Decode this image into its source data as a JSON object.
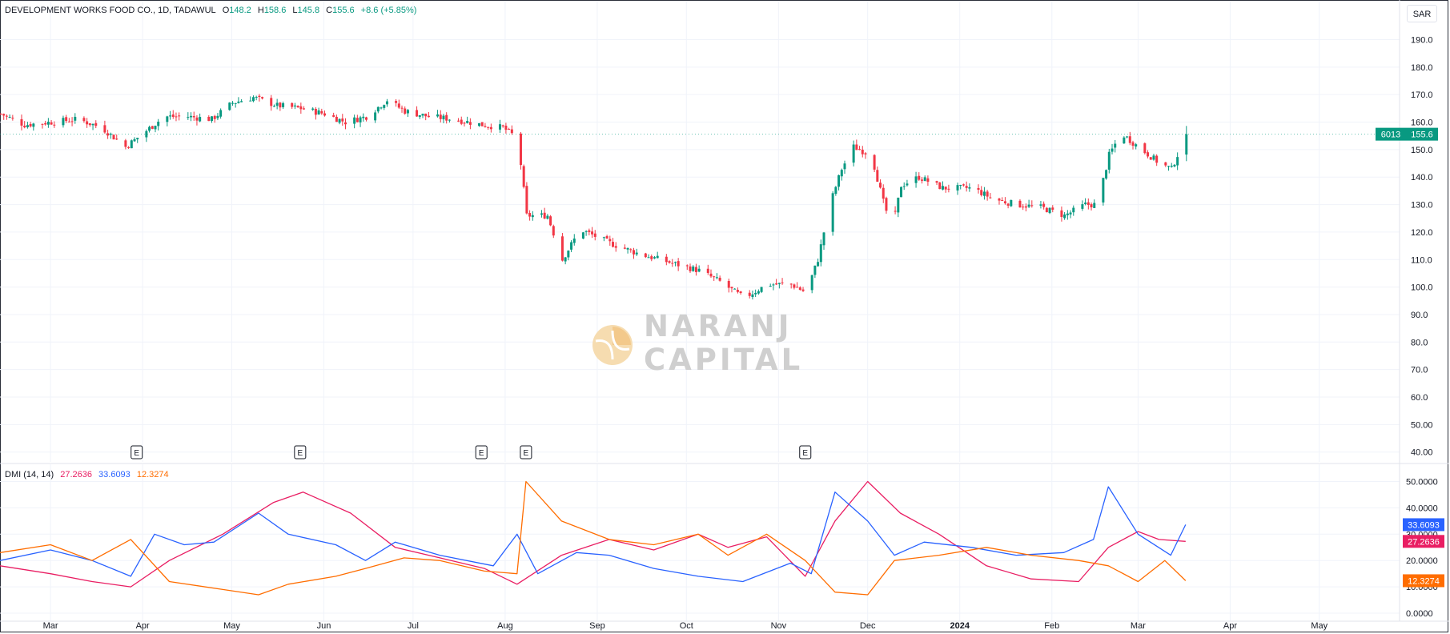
{
  "header": {
    "symbol": "DEVELOPMENT WORKS FOOD CO., 1D, TADAWUL",
    "o_label": "O",
    "o_value": "148.2",
    "h_label": "H",
    "h_value": "158.6",
    "l_label": "L",
    "l_value": "145.8",
    "c_label": "C",
    "c_value": "155.6",
    "change": "+8.6 (+5.85%)"
  },
  "currency_button": "SAR",
  "price_tag": {
    "countdown": "6013",
    "last": "155.6"
  },
  "watermark": {
    "line1": "NARANJ",
    "line2": "CAPITAL"
  },
  "indicator_legend": {
    "name": "DMI (14, 14)",
    "adx": "27.2636",
    "plus_di": "33.6093",
    "minus_di": "12.3274"
  },
  "colors": {
    "up": "#089981",
    "down": "#f23645",
    "adx": "#e91e63",
    "plus_di": "#2962ff",
    "minus_di": "#ff6d00",
    "grid": "#f0f3fa",
    "axis_text": "#131722"
  },
  "earnings_marker": "E",
  "chart_data": [
    {
      "type": "candlestick",
      "title": "DEVELOPMENT WORKS FOOD CO., 1D, TADAWUL",
      "ylim": [
        37,
        198
      ],
      "y_ticks": [
        "190.0",
        "180.0",
        "170.0",
        "160.0",
        "150.0",
        "140.0",
        "130.0",
        "120.0",
        "110.0",
        "100.0",
        "90.0",
        "80.0",
        "70.0",
        "60.0",
        "50.00",
        "40.00"
      ],
      "x_ticks": [
        "Mar",
        "Apr",
        "May",
        "Jun",
        "Jul",
        "Aug",
        "Sep",
        "Oct",
        "Nov",
        "Dec",
        "2024",
        "Feb",
        "Mar",
        "Apr",
        "May"
      ],
      "x_tick_dates": [
        "2023-03-01",
        "2023-04-01",
        "2023-05-01",
        "2023-06-01",
        "2023-07-01",
        "2023-08-01",
        "2023-09-01",
        "2023-10-01",
        "2023-11-01",
        "2023-12-01",
        "2024-01-01",
        "2024-02-01",
        "2024-03-01",
        "2024-04-01",
        "2024-05-01"
      ],
      "earnings_dates": [
        "2023-03-30",
        "2023-05-24",
        "2023-07-24",
        "2023-08-08",
        "2023-11-10"
      ],
      "close_path": [
        [
          "2023-02-12",
          163
        ],
        [
          "2023-02-20",
          159
        ],
        [
          "2023-03-01",
          160
        ],
        [
          "2023-03-10",
          161
        ],
        [
          "2023-03-18",
          158
        ],
        [
          "2023-03-26",
          151
        ],
        [
          "2023-04-01",
          156
        ],
        [
          "2023-04-08",
          162
        ],
        [
          "2023-04-16",
          162
        ],
        [
          "2023-04-24",
          161
        ],
        [
          "2023-05-01",
          167
        ],
        [
          "2023-05-08",
          169
        ],
        [
          "2023-05-16",
          166
        ],
        [
          "2023-05-24",
          165
        ],
        [
          "2023-06-01",
          163
        ],
        [
          "2023-06-08",
          160
        ],
        [
          "2023-06-15",
          162
        ],
        [
          "2023-06-22",
          168
        ],
        [
          "2023-06-28",
          164
        ],
        [
          "2023-07-06",
          162
        ],
        [
          "2023-07-15",
          161
        ],
        [
          "2023-07-24",
          159
        ],
        [
          "2023-07-31",
          158
        ],
        [
          "2023-08-05",
          154
        ],
        [
          "2023-08-08",
          126
        ],
        [
          "2023-08-15",
          126
        ],
        [
          "2023-08-20",
          110
        ],
        [
          "2023-08-26",
          121
        ],
        [
          "2023-09-05",
          116
        ],
        [
          "2023-09-15",
          112
        ],
        [
          "2023-09-25",
          109
        ],
        [
          "2023-10-05",
          106
        ],
        [
          "2023-10-12",
          102
        ],
        [
          "2023-10-20",
          96
        ],
        [
          "2023-10-28",
          101
        ],
        [
          "2023-11-05",
          101
        ],
        [
          "2023-11-10",
          98
        ],
        [
          "2023-11-14",
          110
        ],
        [
          "2023-11-18",
          130
        ],
        [
          "2023-11-22",
          143
        ],
        [
          "2023-11-26",
          151
        ],
        [
          "2023-12-02",
          148
        ],
        [
          "2023-12-06",
          131
        ],
        [
          "2023-12-09",
          121
        ],
        [
          "2023-12-12",
          137
        ],
        [
          "2023-12-18",
          140
        ],
        [
          "2023-12-26",
          136
        ],
        [
          "2024-01-05",
          136
        ],
        [
          "2024-01-12",
          132
        ],
        [
          "2024-01-20",
          130
        ],
        [
          "2024-01-28",
          129
        ],
        [
          "2024-02-05",
          126
        ],
        [
          "2024-02-12",
          130
        ],
        [
          "2024-02-16",
          130
        ],
        [
          "2024-02-20",
          148
        ],
        [
          "2024-02-24",
          156
        ],
        [
          "2024-03-02",
          150
        ],
        [
          "2024-03-08",
          145
        ],
        [
          "2024-03-12",
          143
        ],
        [
          "2024-03-17",
          155.6
        ]
      ],
      "last": {
        "open": 148.2,
        "high": 158.6,
        "low": 145.8,
        "close": 155.6
      }
    },
    {
      "type": "line",
      "title": "DMI (14, 14)",
      "ylim": [
        0,
        53.5
      ],
      "y_ticks": [
        "50.0000",
        "40.0000",
        "30.0000",
        "20.0000",
        "10.0000",
        "0.0000"
      ],
      "series": [
        {
          "name": "ADX",
          "last": 27.2636,
          "points": [
            [
              "2023-02-12",
              18
            ],
            [
              "2023-03-01",
              15
            ],
            [
              "2023-03-15",
              12
            ],
            [
              "2023-03-28",
              10
            ],
            [
              "2023-04-10",
              20
            ],
            [
              "2023-04-28",
              30
            ],
            [
              "2023-05-15",
              42
            ],
            [
              "2023-05-25",
              46
            ],
            [
              "2023-06-10",
              38
            ],
            [
              "2023-06-25",
              25
            ],
            [
              "2023-07-10",
              21
            ],
            [
              "2023-07-25",
              17
            ],
            [
              "2023-08-05",
              11
            ],
            [
              "2023-08-20",
              22
            ],
            [
              "2023-09-05",
              28
            ],
            [
              "2023-09-20",
              24
            ],
            [
              "2023-10-05",
              30
            ],
            [
              "2023-10-15",
              25
            ],
            [
              "2023-10-28",
              29
            ],
            [
              "2023-11-10",
              14
            ],
            [
              "2023-11-20",
              35
            ],
            [
              "2023-12-01",
              50
            ],
            [
              "2023-12-12",
              38
            ],
            [
              "2023-12-25",
              30
            ],
            [
              "2024-01-10",
              18
            ],
            [
              "2024-01-25",
              13
            ],
            [
              "2024-02-10",
              12
            ],
            [
              "2024-02-20",
              25
            ],
            [
              "2024-03-01",
              31
            ],
            [
              "2024-03-08",
              28
            ],
            [
              "2024-03-17",
              27.26
            ]
          ]
        },
        {
          "name": "+DI",
          "last": 33.6093,
          "points": [
            [
              "2023-02-12",
              20
            ],
            [
              "2023-03-01",
              24
            ],
            [
              "2023-03-15",
              20
            ],
            [
              "2023-03-28",
              14
            ],
            [
              "2023-04-05",
              30
            ],
            [
              "2023-04-15",
              26
            ],
            [
              "2023-04-25",
              27
            ],
            [
              "2023-05-10",
              38
            ],
            [
              "2023-05-20",
              30
            ],
            [
              "2023-06-05",
              26
            ],
            [
              "2023-06-15",
              20
            ],
            [
              "2023-06-25",
              27
            ],
            [
              "2023-07-10",
              22
            ],
            [
              "2023-07-28",
              18
            ],
            [
              "2023-08-05",
              30
            ],
            [
              "2023-08-12",
              15
            ],
            [
              "2023-08-25",
              23
            ],
            [
              "2023-09-05",
              22
            ],
            [
              "2023-09-20",
              17
            ],
            [
              "2023-10-05",
              14
            ],
            [
              "2023-10-20",
              12
            ],
            [
              "2023-11-05",
              19
            ],
            [
              "2023-11-12",
              15
            ],
            [
              "2023-11-20",
              46
            ],
            [
              "2023-12-01",
              35
            ],
            [
              "2023-12-10",
              22
            ],
            [
              "2023-12-20",
              27
            ],
            [
              "2024-01-05",
              25
            ],
            [
              "2024-01-20",
              22
            ],
            [
              "2024-02-05",
              23
            ],
            [
              "2024-02-15",
              28
            ],
            [
              "2024-02-20",
              48
            ],
            [
              "2024-03-01",
              30
            ],
            [
              "2024-03-12",
              22
            ],
            [
              "2024-03-17",
              33.61
            ]
          ]
        },
        {
          "name": "-DI",
          "last": 12.3274,
          "points": [
            [
              "2023-02-12",
              23
            ],
            [
              "2023-03-01",
              26
            ],
            [
              "2023-03-15",
              20
            ],
            [
              "2023-03-28",
              28
            ],
            [
              "2023-04-10",
              12
            ],
            [
              "2023-04-28",
              9
            ],
            [
              "2023-05-10",
              7
            ],
            [
              "2023-05-20",
              11
            ],
            [
              "2023-06-05",
              14
            ],
            [
              "2023-06-15",
              17
            ],
            [
              "2023-06-28",
              21
            ],
            [
              "2023-07-10",
              20
            ],
            [
              "2023-07-25",
              16
            ],
            [
              "2023-08-05",
              15
            ],
            [
              "2023-08-08",
              50
            ],
            [
              "2023-08-20",
              35
            ],
            [
              "2023-09-05",
              28
            ],
            [
              "2023-09-20",
              26
            ],
            [
              "2023-10-05",
              30
            ],
            [
              "2023-10-15",
              22
            ],
            [
              "2023-10-28",
              30
            ],
            [
              "2023-11-10",
              20
            ],
            [
              "2023-11-20",
              8
            ],
            [
              "2023-12-01",
              7
            ],
            [
              "2023-12-10",
              20
            ],
            [
              "2023-12-25",
              22
            ],
            [
              "2024-01-10",
              25
            ],
            [
              "2024-01-25",
              22
            ],
            [
              "2024-02-10",
              20
            ],
            [
              "2024-02-20",
              18
            ],
            [
              "2024-03-01",
              12
            ],
            [
              "2024-03-10",
              20
            ],
            [
              "2024-03-17",
              12.33
            ]
          ]
        }
      ]
    }
  ]
}
